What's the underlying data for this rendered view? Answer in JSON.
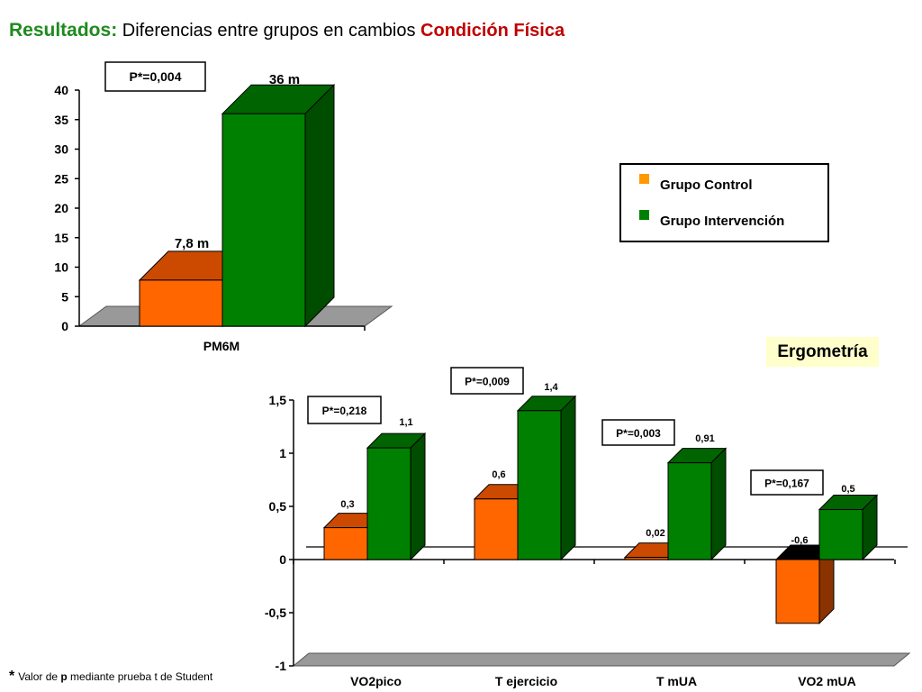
{
  "title": {
    "lead": "Resultados:",
    "middle": "Diferencias entre grupos en cambios",
    "highlight": "Condición Física"
  },
  "colors": {
    "control": "#ff6600",
    "control_top": "#cc4a00",
    "control_side": "#8b3300",
    "intervention": "#008000",
    "intervention_top": "#006400",
    "intervention_side": "#004d00",
    "floor": "#999999",
    "title_green": "#1f8a1f",
    "title_red": "#c00000",
    "badge": "#ffffcc"
  },
  "legend": {
    "items": [
      {
        "label": "Grupo Control",
        "color": "#ff9900"
      },
      {
        "label": "Grupo Intervención",
        "color": "#008000"
      }
    ]
  },
  "ergometria_label": "Ergometría",
  "footnote": {
    "star": "*",
    "pre": "Valor de ",
    "bold": "p",
    "post": " mediante prueba t de Student"
  },
  "chart_data": [
    {
      "type": "bar",
      "categories": [
        "PM6M"
      ],
      "series": [
        {
          "name": "Grupo Control",
          "values": [
            7.8
          ]
        },
        {
          "name": "Grupo Intervención",
          "values": [
            36
          ]
        }
      ],
      "data_labels": [
        [
          "7,8 m"
        ],
        [
          "36 m"
        ]
      ],
      "annotations": [
        "P*=0,004"
      ],
      "ylim": [
        0,
        40
      ],
      "y_ticks": [
        "0",
        "5",
        "10",
        "15",
        "20",
        "25",
        "30",
        "35",
        "40"
      ],
      "tick_values": [
        0,
        5,
        10,
        15,
        20,
        25,
        30,
        35,
        40
      ],
      "title": "",
      "xlabel": "",
      "ylabel": ""
    },
    {
      "type": "bar",
      "categories": [
        "VO2pico",
        "T ejercicio",
        "T mUA",
        "VO2 mUA"
      ],
      "series": [
        {
          "name": "Grupo Control",
          "values": [
            0.3,
            0.57,
            0.02,
            -0.6
          ]
        },
        {
          "name": "Grupo Intervención",
          "values": [
            1.05,
            1.4,
            0.91,
            0.47
          ]
        }
      ],
      "data_labels": [
        [
          "0,3",
          "0,6",
          "0,02",
          "-0,6"
        ],
        [
          "1,1",
          "1,4",
          "0,91",
          "0,5"
        ]
      ],
      "annotations": [
        "P*=0,218",
        "P*=0,009",
        "P*=0,003",
        "P*=0,167"
      ],
      "ylim": [
        -1,
        1.5
      ],
      "y_ticks": [
        "-1",
        "-0,5",
        "0",
        "0,5",
        "1",
        "1,5"
      ],
      "tick_values": [
        -1,
        -0.5,
        0,
        0.5,
        1,
        1.5
      ],
      "title": "",
      "xlabel": "",
      "ylabel": ""
    }
  ]
}
